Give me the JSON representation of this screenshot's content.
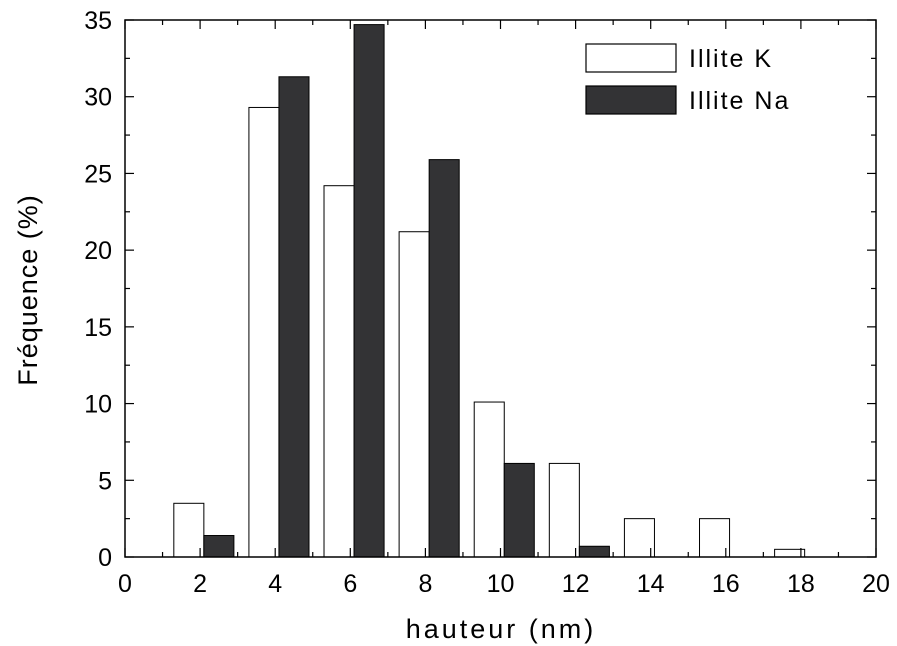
{
  "chart_data": {
    "type": "bar",
    "title": "",
    "xlabel": "hauteur (nm)",
    "ylabel": "Fréquence (%)",
    "xlim": [
      0,
      20
    ],
    "ylim": [
      0,
      35
    ],
    "x_ticks": [
      "0",
      "2",
      "4",
      "6",
      "8",
      "10",
      "12",
      "14",
      "16",
      "18",
      "20"
    ],
    "y_ticks": [
      "0",
      "5",
      "10",
      "15",
      "20",
      "25",
      "30",
      "35"
    ],
    "grid": false,
    "legend_position": "top-right",
    "bin_starts": [
      1.3,
      3.3,
      5.3,
      7.3,
      9.3,
      11.3,
      13.3,
      15.3,
      17.3
    ],
    "bar_width": 0.8,
    "series": [
      {
        "name": "Illite K",
        "fill": "#ffffff",
        "stroke": "#000000",
        "values": [
          3.5,
          29.3,
          24.2,
          21.2,
          10.1,
          6.1,
          2.5,
          2.5,
          0.5
        ]
      },
      {
        "name": "Illite Na",
        "fill": "#333335",
        "stroke": "#000000",
        "values": [
          1.4,
          31.3,
          34.7,
          25.9,
          6.1,
          0.7,
          0,
          0,
          0
        ]
      }
    ]
  }
}
